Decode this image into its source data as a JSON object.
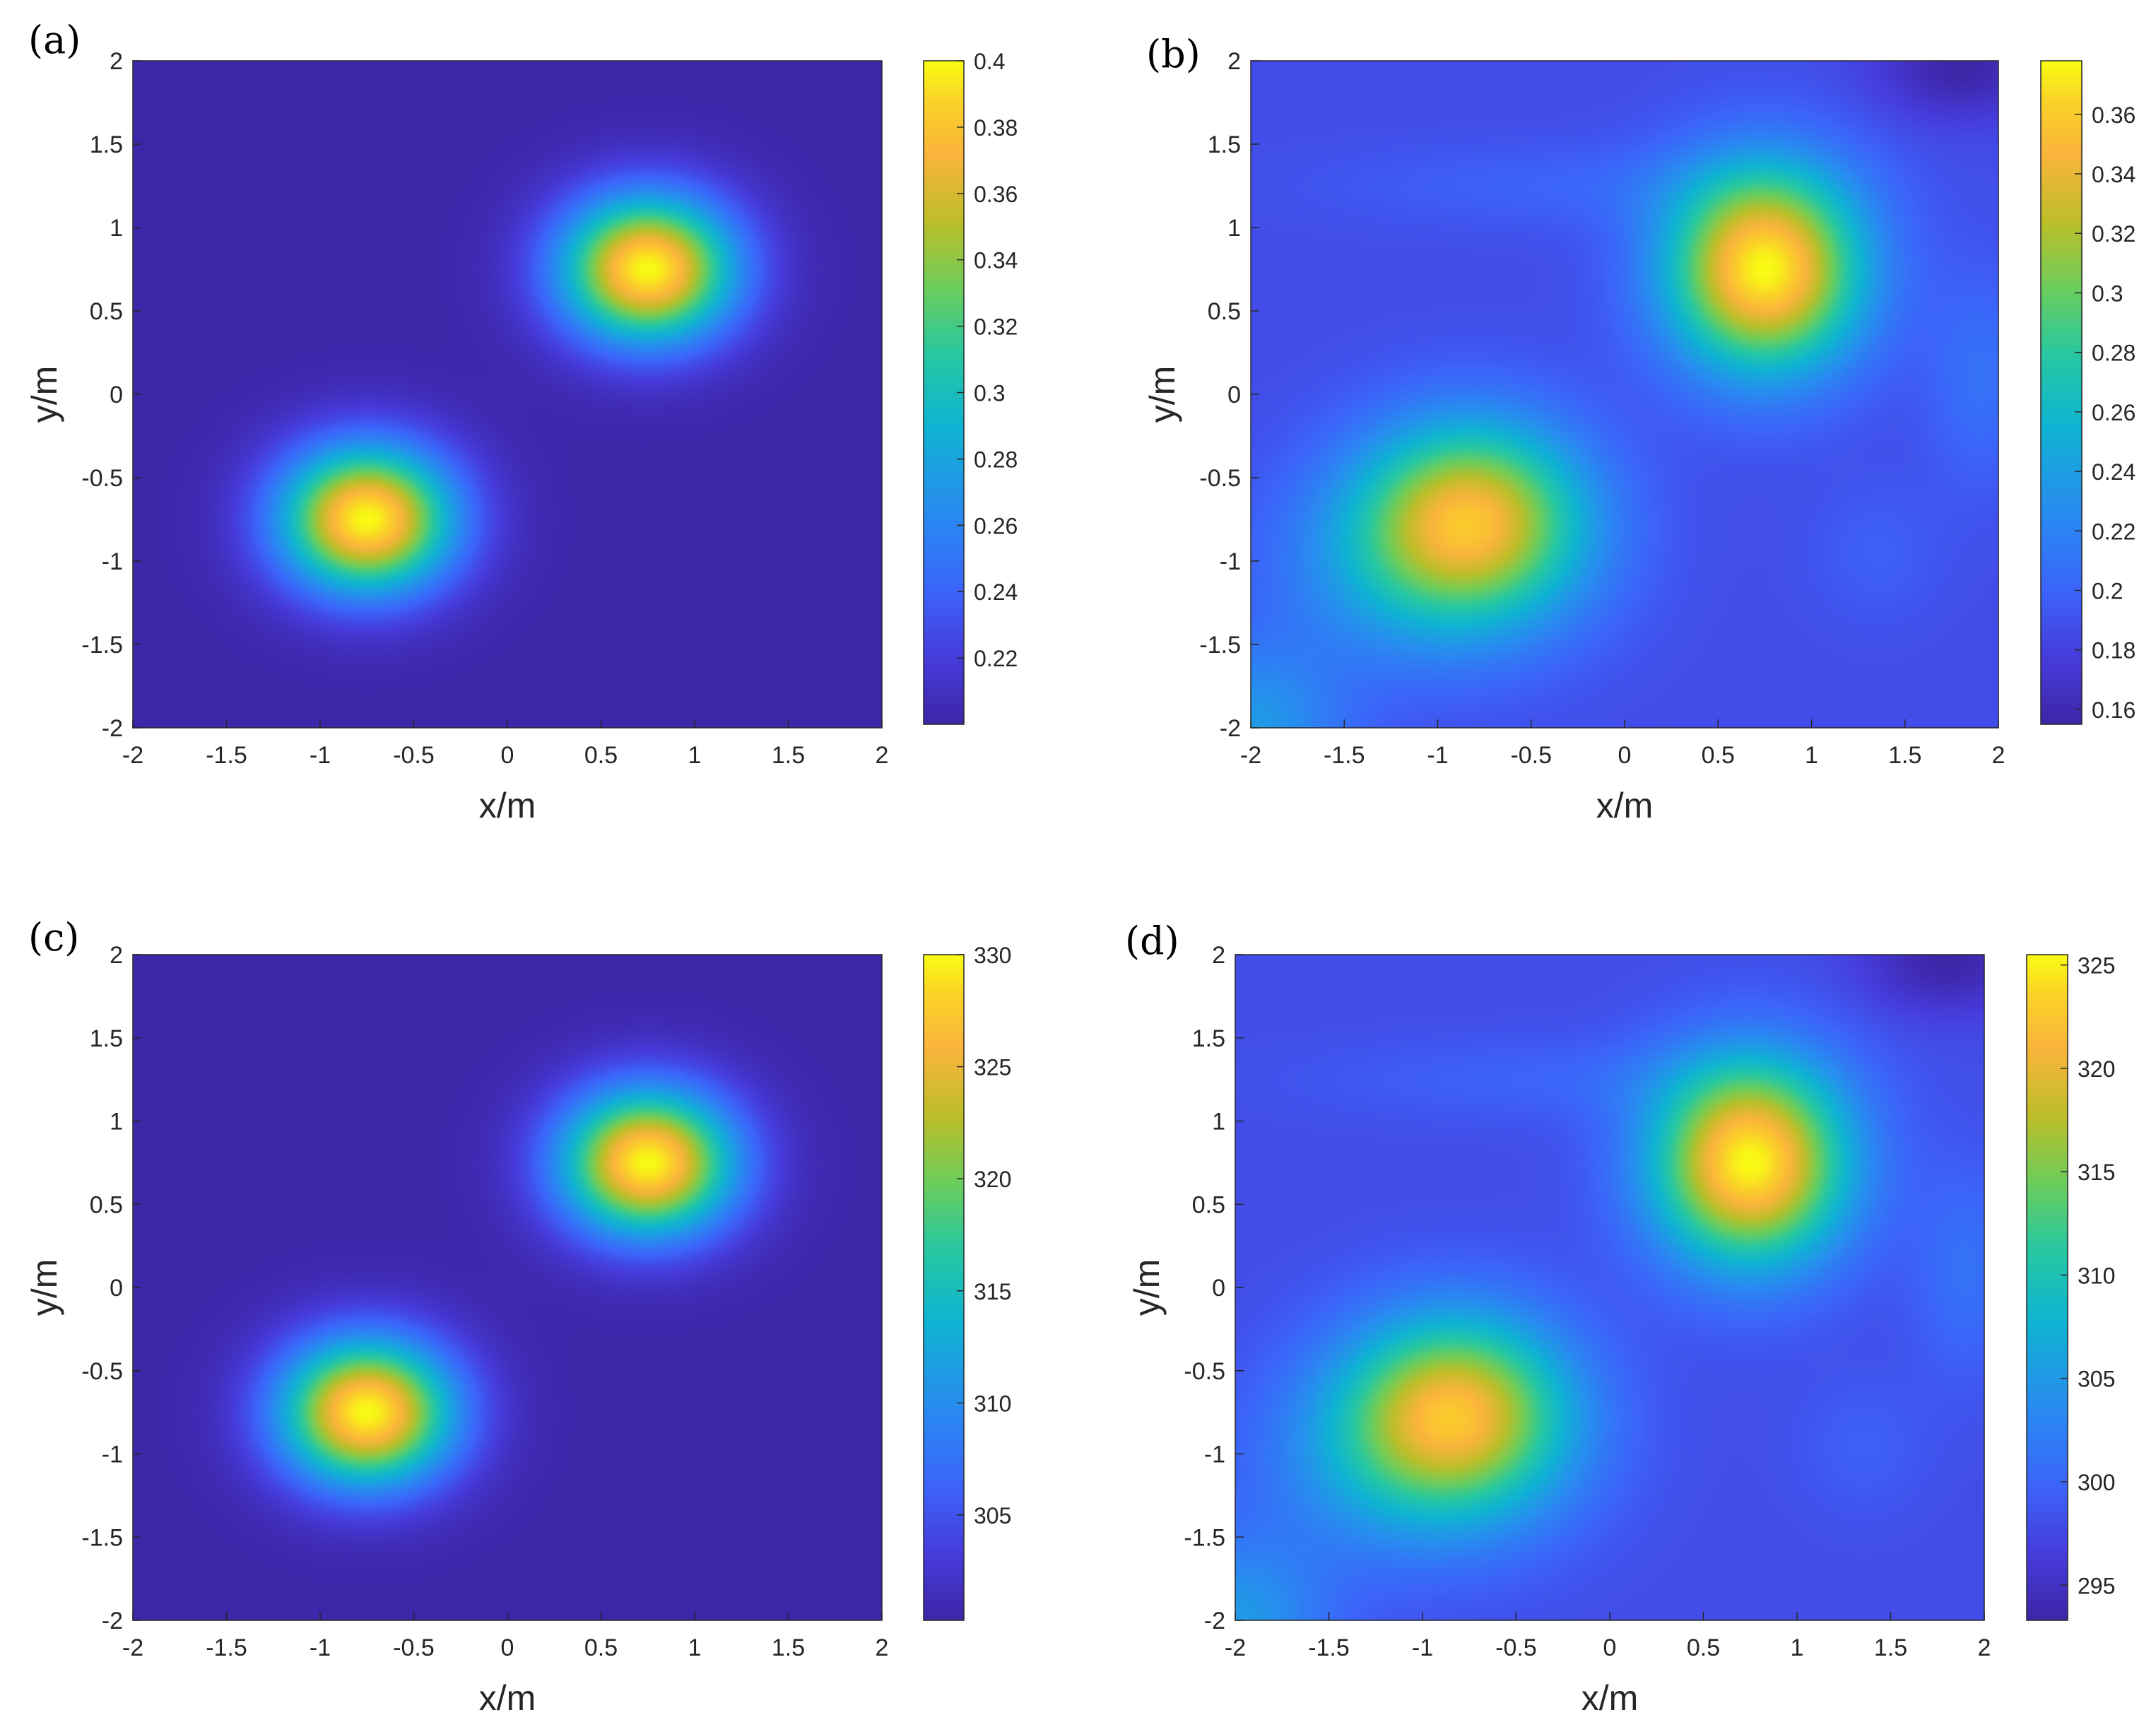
{
  "chart_data": [
    {
      "panel": "(a)",
      "type": "heatmap",
      "xlabel": "x/m",
      "ylabel": "y/m",
      "xlim": [
        -2,
        2
      ],
      "ylim": [
        -2,
        2
      ],
      "xticks": [
        "-2",
        "-1.5",
        "-1",
        "-0.5",
        "0",
        "0.5",
        "1",
        "1.5",
        "2"
      ],
      "yticks": [
        "-2",
        "-1.5",
        "-1",
        "-0.5",
        "0",
        "0.5",
        "1",
        "1.5",
        "2"
      ],
      "colorbar": {
        "min": 0.2,
        "max": 0.4,
        "ticks": [
          "0.22",
          "0.24",
          "0.26",
          "0.28",
          "0.3",
          "0.32",
          "0.34",
          "0.36",
          "0.38",
          "0.4"
        ]
      },
      "peaks": [
        {
          "x": 0.75,
          "y": 0.75,
          "value": 0.385
        },
        {
          "x": -0.75,
          "y": -0.75,
          "value": 0.385
        }
      ]
    },
    {
      "panel": "(b)",
      "type": "heatmap",
      "xlabel": "x/m",
      "ylabel": "y/m",
      "xlim": [
        -2,
        2
      ],
      "ylim": [
        -2,
        2
      ],
      "xticks": [
        "-2",
        "-1.5",
        "-1",
        "-0.5",
        "0",
        "0.5",
        "1",
        "1.5",
        "2"
      ],
      "yticks": [
        "-2",
        "-1.5",
        "-1",
        "-0.5",
        "0",
        "0.5",
        "1",
        "1.5",
        "2"
      ],
      "colorbar": {
        "min": 0.155,
        "max": 0.378,
        "ticks": [
          "0.16",
          "0.18",
          "0.2",
          "0.22",
          "0.24",
          "0.26",
          "0.28",
          "0.3",
          "0.32",
          "0.34",
          "0.36"
        ]
      },
      "peaks": [
        {
          "x": 0.75,
          "y": 0.75,
          "value": 0.37
        },
        {
          "x": -0.8,
          "y": -0.8,
          "value": 0.34
        }
      ]
    },
    {
      "panel": "(c)",
      "type": "heatmap",
      "xlabel": "x/m",
      "ylabel": "y/m",
      "xlim": [
        -2,
        2
      ],
      "ylim": [
        -2,
        2
      ],
      "xticks": [
        "-2",
        "-1.5",
        "-1",
        "-0.5",
        "0",
        "0.5",
        "1",
        "1.5",
        "2"
      ],
      "yticks": [
        "-2",
        "-1.5",
        "-1",
        "-0.5",
        "0",
        "0.5",
        "1",
        "1.5",
        "2"
      ],
      "colorbar": {
        "min": 300.3,
        "max": 330,
        "ticks": [
          "305",
          "310",
          "315",
          "320",
          "325",
          "330"
        ]
      },
      "peaks": [
        {
          "x": 0.75,
          "y": 0.75,
          "value": 328
        },
        {
          "x": -0.75,
          "y": -0.75,
          "value": 328
        }
      ]
    },
    {
      "panel": "(d)",
      "type": "heatmap",
      "xlabel": "x/m",
      "ylabel": "y/m",
      "xlim": [
        -2,
        2
      ],
      "ylim": [
        -2,
        2
      ],
      "xticks": [
        "-2",
        "-1.5",
        "-1",
        "-0.5",
        "0",
        "0.5",
        "1",
        "1.5",
        "2"
      ],
      "yticks": [
        "-2",
        "-1.5",
        "-1",
        "-0.5",
        "0",
        "0.5",
        "1",
        "1.5",
        "2"
      ],
      "colorbar": {
        "min": 293.3,
        "max": 325.5,
        "ticks": [
          "295",
          "300",
          "305",
          "310",
          "315",
          "320",
          "325"
        ]
      },
      "peaks": [
        {
          "x": 0.75,
          "y": 0.75,
          "value": 324
        },
        {
          "x": -0.8,
          "y": -0.8,
          "value": 320
        }
      ]
    }
  ]
}
